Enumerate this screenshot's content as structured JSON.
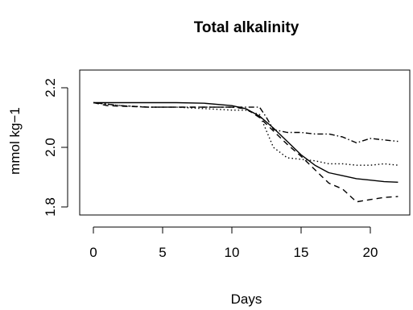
{
  "chart_data": {
    "type": "line",
    "title": "Total alkalinity",
    "xlabel": "Days",
    "ylabel": "mmol kg−1",
    "xlim": [
      0,
      22
    ],
    "ylim": [
      1.8,
      2.2
    ],
    "xticks": [
      0,
      5,
      10,
      15,
      20
    ],
    "yticks": [
      1.8,
      2.0,
      2.2
    ],
    "xtick_labels": [
      "0",
      "5",
      "10",
      "15",
      "20"
    ],
    "ytick_labels": [
      "1.8",
      "2.0",
      "2.2"
    ],
    "grid": false,
    "series": [
      {
        "style": "solid",
        "x": [
          0,
          2,
          4,
          6,
          8,
          10,
          11,
          12,
          13,
          14,
          15,
          16,
          17,
          18,
          19,
          20,
          21,
          22
        ],
        "y": [
          2.15,
          2.15,
          2.15,
          2.15,
          2.148,
          2.14,
          2.13,
          2.105,
          2.065,
          2.02,
          1.975,
          1.94,
          1.915,
          1.905,
          1.895,
          1.89,
          1.885,
          1.883
        ]
      },
      {
        "style": "dashed",
        "x": [
          0,
          1,
          2,
          4,
          6,
          8,
          10,
          11,
          12,
          13,
          14,
          15,
          16,
          17,
          18,
          19,
          20,
          21,
          22
        ],
        "y": [
          2.15,
          2.14,
          2.138,
          2.135,
          2.135,
          2.135,
          2.135,
          2.13,
          2.1,
          2.055,
          2.01,
          1.97,
          1.925,
          1.88,
          1.86,
          1.817,
          1.825,
          1.832,
          1.835
        ]
      },
      {
        "style": "dotted",
        "x": [
          0,
          2,
          4,
          6,
          8,
          10,
          11,
          12,
          13,
          14,
          15,
          16,
          17,
          18,
          19,
          20,
          21,
          22
        ],
        "y": [
          2.15,
          2.14,
          2.135,
          2.135,
          2.13,
          2.125,
          2.125,
          2.11,
          2.0,
          1.965,
          1.96,
          1.955,
          1.945,
          1.945,
          1.94,
          1.94,
          1.945,
          1.94
        ]
      },
      {
        "style": "dotdash",
        "x": [
          0,
          2,
          4,
          6,
          8,
          10,
          11,
          12,
          12.5,
          13,
          14,
          15,
          16,
          17,
          18,
          19,
          20,
          21,
          22
        ],
        "y": [
          2.15,
          2.14,
          2.135,
          2.135,
          2.135,
          2.135,
          2.135,
          2.135,
          2.1,
          2.06,
          2.05,
          2.05,
          2.045,
          2.045,
          2.035,
          2.015,
          2.03,
          2.025,
          2.02
        ]
      }
    ]
  }
}
